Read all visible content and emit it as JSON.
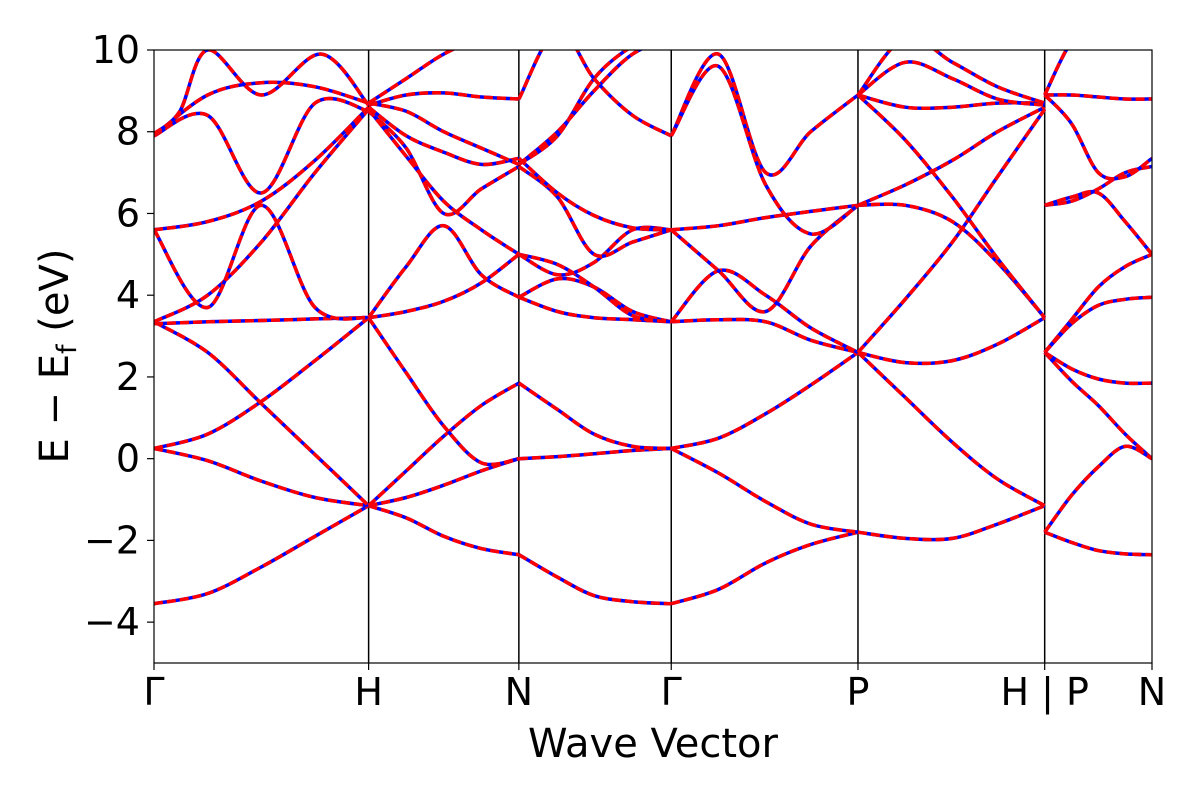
{
  "chart_data": {
    "type": "line",
    "title": "",
    "xlabel": "Wave Vector",
    "ylabel_main": "E − E",
    "ylabel_sub": "f",
    "ylabel_unit": " (eV)",
    "ylim": [
      -5,
      10
    ],
    "xlim": [
      0,
      4.65
    ],
    "yticks": [
      -4,
      -2,
      0,
      2,
      4,
      6,
      8,
      10
    ],
    "ytick_labels": [
      "−4",
      "−2",
      "0",
      "2",
      "4",
      "6",
      "8",
      "10"
    ],
    "kpoints": [
      {
        "x": 0.0,
        "label": "Γ"
      },
      {
        "x": 1.0,
        "label": "H"
      },
      {
        "x": 1.7,
        "label": "N"
      },
      {
        "x": 2.41,
        "label": "Γ"
      },
      {
        "x": 3.28,
        "label": "P"
      },
      {
        "x": 4.15,
        "label": "H | P"
      },
      {
        "x": 4.65,
        "label": "N"
      }
    ],
    "grid": false,
    "legend": "none",
    "colors": {
      "reference": "#0000ff",
      "overlay": "#ff0000",
      "vline": "#000000"
    },
    "series": [
      {
        "segment": "Γ-H",
        "x": [
          0,
          0.25,
          0.5,
          0.75,
          1.0
        ],
        "y": [
          -3.55,
          -3.3,
          -2.65,
          -1.9,
          -1.15
        ]
      },
      {
        "segment": "Γ-H",
        "x": [
          0,
          0.25,
          0.5,
          0.75,
          1.0
        ],
        "y": [
          0.25,
          -0.05,
          -0.55,
          -0.95,
          -1.15
        ]
      },
      {
        "segment": "Γ-H",
        "x": [
          0,
          0.25,
          0.5,
          0.75,
          1.0
        ],
        "y": [
          0.25,
          0.6,
          1.4,
          2.4,
          3.45
        ]
      },
      {
        "segment": "Γ-H",
        "x": [
          0,
          0.25,
          0.5,
          0.75,
          1.0
        ],
        "y": [
          3.35,
          2.6,
          1.35,
          0.1,
          -1.15
        ]
      },
      {
        "segment": "Γ-H",
        "x": [
          0,
          0.25,
          0.5,
          0.75,
          1.0
        ],
        "y": [
          3.3,
          3.35,
          3.38,
          3.42,
          3.45
        ]
      },
      {
        "segment": "Γ-H",
        "x": [
          0,
          0.25,
          0.5,
          0.75,
          1.0
        ],
        "y": [
          3.35,
          4.0,
          5.3,
          7.0,
          8.55
        ]
      },
      {
        "segment": "Γ-H",
        "x": [
          0,
          0.25,
          0.5,
          0.75,
          1.0
        ],
        "y": [
          5.6,
          5.8,
          6.3,
          7.3,
          8.6
        ]
      },
      {
        "segment": "Γ-H",
        "x": [
          0,
          0.25,
          0.5,
          0.75,
          1.0
        ],
        "y": [
          5.6,
          3.7,
          6.2,
          3.7,
          3.45
        ]
      },
      {
        "segment": "Γ-H",
        "x": [
          0,
          0.25,
          0.5,
          0.75,
          1.0
        ],
        "y": [
          7.9,
          8.4,
          6.5,
          8.7,
          8.5
        ]
      },
      {
        "segment": "Γ-H",
        "x": [
          0,
          0.25,
          0.5,
          0.75,
          1.0
        ],
        "y": [
          7.9,
          8.9,
          9.2,
          9.1,
          8.7
        ]
      },
      {
        "segment": "Γ-H",
        "x": [
          0,
          0.12,
          0.25,
          0.5,
          0.78,
          1.0
        ],
        "y": [
          7.95,
          8.5,
          10,
          8.9,
          9.9,
          8.65
        ]
      },
      {
        "segment": "H-N",
        "x": [
          1.0,
          1.175,
          1.35,
          1.525,
          1.7
        ],
        "y": [
          -1.15,
          -1.45,
          -1.9,
          -2.2,
          -2.35
        ]
      },
      {
        "segment": "H-N",
        "x": [
          1.0,
          1.175,
          1.35,
          1.525,
          1.7
        ],
        "y": [
          -1.15,
          -0.95,
          -0.65,
          -0.3,
          0.0
        ]
      },
      {
        "segment": "H-N",
        "x": [
          1.0,
          1.175,
          1.35,
          1.525,
          1.7
        ],
        "y": [
          -1.15,
          -0.3,
          0.55,
          1.3,
          1.85
        ]
      },
      {
        "segment": "H-N",
        "x": [
          1.0,
          1.175,
          1.35,
          1.525,
          1.7
        ],
        "y": [
          3.45,
          2.1,
          0.8,
          -0.1,
          0.0
        ]
      },
      {
        "segment": "H-N",
        "x": [
          1.0,
          1.175,
          1.35,
          1.525,
          1.7
        ],
        "y": [
          3.45,
          3.6,
          3.85,
          4.3,
          5.0
        ]
      },
      {
        "segment": "H-N",
        "x": [
          1.0,
          1.175,
          1.35,
          1.525,
          1.7
        ],
        "y": [
          3.45,
          4.7,
          5.7,
          4.5,
          3.95
        ]
      },
      {
        "segment": "H-N",
        "x": [
          1.0,
          1.175,
          1.35,
          1.525,
          1.7
        ],
        "y": [
          8.5,
          7.6,
          6.0,
          6.6,
          7.15
        ]
      },
      {
        "segment": "H-N",
        "x": [
          1.0,
          1.175,
          1.35,
          1.525,
          1.7
        ],
        "y": [
          8.55,
          7.4,
          6.3,
          5.6,
          5.0
        ]
      },
      {
        "segment": "H-N",
        "x": [
          1.0,
          1.175,
          1.35,
          1.525,
          1.7
        ],
        "y": [
          8.6,
          7.9,
          7.5,
          7.2,
          7.35
        ]
      },
      {
        "segment": "H-N",
        "x": [
          1.0,
          1.175,
          1.35,
          1.525,
          1.7
        ],
        "y": [
          8.65,
          8.9,
          8.95,
          8.85,
          8.8
        ]
      },
      {
        "segment": "H-N",
        "x": [
          1.0,
          1.175,
          1.35,
          1.525,
          1.7
        ],
        "y": [
          8.7,
          8.5,
          8.0,
          7.6,
          7.2
        ]
      },
      {
        "segment": "H-N",
        "x": [
          1.0,
          1.175,
          1.35,
          1.525,
          1.7
        ],
        "y": [
          8.7,
          9.3,
          9.9,
          10.3,
          10.5
        ]
      },
      {
        "segment": "N-Γ",
        "x": [
          1.7,
          1.88,
          2.05,
          2.23,
          2.41
        ],
        "y": [
          -2.35,
          -2.9,
          -3.35,
          -3.5,
          -3.55
        ]
      },
      {
        "segment": "N-Γ",
        "x": [
          1.7,
          1.88,
          2.05,
          2.23,
          2.41
        ],
        "y": [
          0.0,
          0.05,
          0.12,
          0.2,
          0.25
        ]
      },
      {
        "segment": "N-Γ",
        "x": [
          1.7,
          1.88,
          2.05,
          2.23,
          2.41
        ],
        "y": [
          1.85,
          1.2,
          0.6,
          0.3,
          0.25
        ]
      },
      {
        "segment": "N-Γ",
        "x": [
          1.7,
          1.88,
          2.05,
          2.23,
          2.41
        ],
        "y": [
          3.95,
          3.6,
          3.45,
          3.4,
          3.35
        ]
      },
      {
        "segment": "N-Γ",
        "x": [
          1.7,
          1.88,
          2.05,
          2.23,
          2.41
        ],
        "y": [
          3.95,
          4.4,
          4.2,
          3.6,
          3.35
        ]
      },
      {
        "segment": "N-Γ",
        "x": [
          1.7,
          1.88,
          2.05,
          2.23,
          2.41
        ],
        "y": [
          5.0,
          4.75,
          4.2,
          3.5,
          3.35
        ]
      },
      {
        "segment": "N-Γ",
        "x": [
          1.7,
          1.88,
          2.05,
          2.23,
          2.41
        ],
        "y": [
          5.0,
          4.5,
          4.8,
          5.6,
          5.6
        ]
      },
      {
        "segment": "N-Γ",
        "x": [
          1.7,
          1.88,
          2.05,
          2.23,
          2.41
        ],
        "y": [
          7.15,
          6.4,
          5.0,
          5.3,
          5.6
        ]
      },
      {
        "segment": "N-Γ",
        "x": [
          1.7,
          1.88,
          2.05,
          2.23,
          2.41
        ],
        "y": [
          7.35,
          6.5,
          5.95,
          5.65,
          5.6
        ]
      },
      {
        "segment": "N-Γ",
        "x": [
          1.7,
          1.88,
          2.05,
          2.23,
          2.41
        ],
        "y": [
          7.2,
          7.9,
          9.3,
          10.1,
          10.5
        ]
      },
      {
        "segment": "N-Γ",
        "x": [
          1.7,
          1.88,
          2.05,
          2.23,
          2.41
        ],
        "y": [
          7.2,
          8.0,
          9.0,
          9.9,
          10.3
        ]
      },
      {
        "segment": "N-Γ",
        "x": [
          1.7,
          1.88,
          2.05,
          2.23,
          2.41
        ],
        "y": [
          8.8,
          10.5,
          9.3,
          8.4,
          7.9
        ]
      },
      {
        "segment": "Γ-P",
        "x": [
          2.41,
          2.63,
          2.85,
          3.06,
          3.28
        ],
        "y": [
          -3.55,
          -3.2,
          -2.55,
          -2.1,
          -1.8
        ]
      },
      {
        "segment": "Γ-P",
        "x": [
          2.41,
          2.63,
          2.85,
          3.06,
          3.28
        ],
        "y": [
          0.25,
          -0.35,
          -1.05,
          -1.6,
          -1.8
        ]
      },
      {
        "segment": "Γ-P",
        "x": [
          2.41,
          2.63,
          2.85,
          3.06,
          3.28
        ],
        "y": [
          0.25,
          0.5,
          1.1,
          1.8,
          2.6
        ]
      },
      {
        "segment": "Γ-P",
        "x": [
          2.41,
          2.63,
          2.85,
          3.06,
          3.28
        ],
        "y": [
          3.35,
          3.4,
          3.35,
          2.9,
          2.6
        ]
      },
      {
        "segment": "Γ-P",
        "x": [
          2.41,
          2.63,
          2.85,
          3.06,
          3.28
        ],
        "y": [
          3.35,
          4.6,
          4.0,
          3.2,
          2.6
        ]
      },
      {
        "segment": "Γ-P",
        "x": [
          2.41,
          2.63,
          2.85,
          3.06,
          3.28
        ],
        "y": [
          5.6,
          5.7,
          5.9,
          6.05,
          6.2
        ]
      },
      {
        "segment": "Γ-P",
        "x": [
          2.41,
          2.63,
          2.85,
          3.06,
          3.28
        ],
        "y": [
          5.6,
          4.6,
          3.6,
          5.2,
          6.2
        ]
      },
      {
        "segment": "Γ-P",
        "x": [
          2.41,
          2.63,
          2.85,
          3.06,
          3.28
        ],
        "y": [
          7.9,
          9.9,
          7.0,
          8.0,
          8.9
        ]
      },
      {
        "segment": "Γ-P",
        "x": [
          2.41,
          2.63,
          2.85,
          3.06,
          3.28
        ],
        "y": [
          7.9,
          9.6,
          6.7,
          5.5,
          6.2
        ]
      },
      {
        "segment": "P-H",
        "x": [
          3.28,
          3.5,
          3.72,
          3.93,
          4.15
        ],
        "y": [
          -1.8,
          -1.95,
          -1.95,
          -1.6,
          -1.15
        ]
      },
      {
        "segment": "P-H",
        "x": [
          3.28,
          3.5,
          3.72,
          3.93,
          4.15
        ],
        "y": [
          2.6,
          1.5,
          0.4,
          -0.5,
          -1.15
        ]
      },
      {
        "segment": "P-H",
        "x": [
          3.28,
          3.5,
          3.72,
          3.93,
          4.15
        ],
        "y": [
          2.6,
          2.35,
          2.4,
          2.8,
          3.45
        ]
      },
      {
        "segment": "P-H",
        "x": [
          3.28,
          3.5,
          3.72,
          3.93,
          4.15
        ],
        "y": [
          2.6,
          3.9,
          5.3,
          6.9,
          8.55
        ]
      },
      {
        "segment": "P-H",
        "x": [
          3.28,
          3.5,
          3.72,
          3.93,
          4.15
        ],
        "y": [
          6.2,
          6.2,
          5.8,
          4.8,
          3.45
        ]
      },
      {
        "segment": "P-H",
        "x": [
          3.28,
          3.5,
          3.72,
          3.93,
          4.15
        ],
        "y": [
          6.2,
          6.7,
          7.3,
          8.0,
          8.6
        ]
      },
      {
        "segment": "P-H",
        "x": [
          3.28,
          3.5,
          3.72,
          3.93,
          4.15
        ],
        "y": [
          8.9,
          7.8,
          6.4,
          4.9,
          3.45
        ]
      },
      {
        "segment": "P-H",
        "x": [
          3.28,
          3.5,
          3.72,
          3.93,
          4.15
        ],
        "y": [
          8.9,
          8.6,
          8.6,
          8.7,
          8.7
        ]
      },
      {
        "segment": "P-H",
        "x": [
          3.28,
          3.5,
          3.72,
          3.93,
          4.15
        ],
        "y": [
          8.9,
          9.7,
          9.3,
          8.8,
          8.65
        ]
      },
      {
        "segment": "P-H",
        "x": [
          3.28,
          3.5,
          3.72,
          3.93,
          4.15
        ],
        "y": [
          8.9,
          10.3,
          9.7,
          9.1,
          8.7
        ]
      },
      {
        "segment": "P-N",
        "x": [
          4.15,
          4.275,
          4.4,
          4.525,
          4.65
        ],
        "y": [
          -1.8,
          -2.05,
          -2.25,
          -2.33,
          -2.35
        ]
      },
      {
        "segment": "P-N",
        "x": [
          4.15,
          4.275,
          4.4,
          4.525,
          4.65
        ],
        "y": [
          2.6,
          1.9,
          1.3,
          0.6,
          0.0
        ]
      },
      {
        "segment": "P-N",
        "x": [
          4.15,
          4.275,
          4.4,
          4.525,
          4.65
        ],
        "y": [
          2.6,
          2.2,
          1.95,
          1.85,
          1.85
        ]
      },
      {
        "segment": "P-N",
        "x": [
          4.15,
          4.275,
          4.4,
          4.525,
          4.65
        ],
        "y": [
          2.6,
          3.3,
          3.75,
          3.9,
          3.95
        ]
      },
      {
        "segment": "P-N",
        "x": [
          4.15,
          4.275,
          4.4,
          4.525,
          4.65
        ],
        "y": [
          -1.8,
          -0.9,
          -0.2,
          0.3,
          0.0
        ]
      },
      {
        "segment": "P-N",
        "x": [
          4.15,
          4.275,
          4.4,
          4.525,
          4.65
        ],
        "y": [
          2.6,
          3.4,
          4.2,
          4.7,
          5.0
        ]
      },
      {
        "segment": "P-N",
        "x": [
          4.15,
          4.275,
          4.4,
          4.525,
          4.65
        ],
        "y": [
          6.2,
          6.3,
          6.6,
          7.0,
          7.15
        ]
      },
      {
        "segment": "P-N",
        "x": [
          4.15,
          4.275,
          4.4,
          4.525,
          4.65
        ],
        "y": [
          6.2,
          6.4,
          6.5,
          5.8,
          5.0
        ]
      },
      {
        "segment": "P-N",
        "x": [
          4.15,
          4.275,
          4.4,
          4.525,
          4.65
        ],
        "y": [
          8.9,
          8.9,
          8.85,
          8.8,
          8.8
        ]
      },
      {
        "segment": "P-N",
        "x": [
          4.15,
          4.275,
          4.4,
          4.525,
          4.65
        ],
        "y": [
          8.9,
          8.2,
          7.0,
          6.9,
          7.35
        ]
      },
      {
        "segment": "P-N",
        "x": [
          4.15,
          4.275,
          4.4,
          4.525,
          4.65
        ],
        "y": [
          8.9,
          10.2,
          10.6,
          10.7,
          10.7
        ]
      }
    ]
  }
}
